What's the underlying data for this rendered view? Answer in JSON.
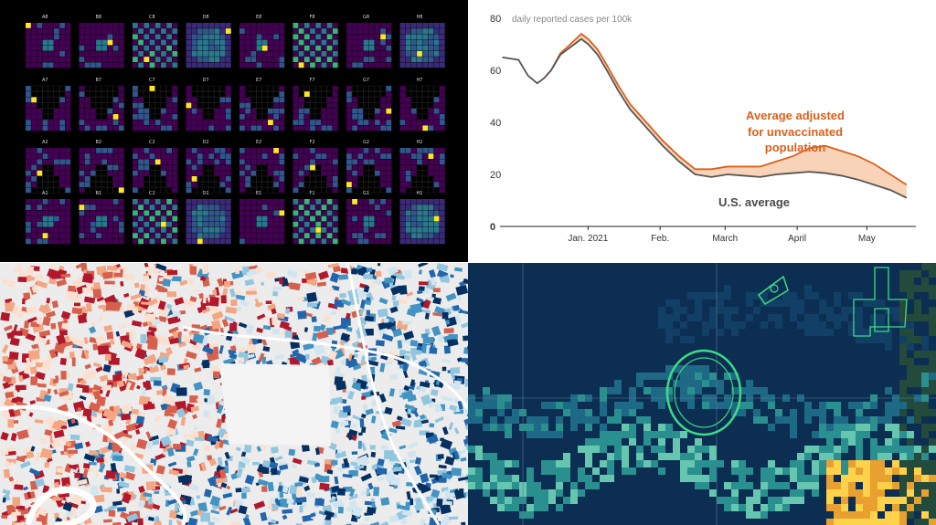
{
  "heatmap_grid": {
    "rows": [
      [
        "A8",
        "B8",
        "C8",
        "D8",
        "E8",
        "F8",
        "G8",
        "H8"
      ],
      [
        "A7",
        "B7",
        "C7",
        "D7",
        "E7",
        "F7",
        "G7",
        "H7"
      ],
      [
        "A2",
        "B2",
        "C2",
        "D2",
        "E2",
        "F2",
        "G2",
        "H2"
      ],
      [
        "A1",
        "B1",
        "C1",
        "D1",
        "E1",
        "F1",
        "G1",
        "H1"
      ]
    ],
    "colors": {
      "background": "#000000",
      "low": "#440154",
      "mid": "#2a788e",
      "high": "#35b779",
      "peak": "#fde725"
    }
  },
  "chart_data": {
    "type": "line",
    "ylabel": "daily reported cases per 100k",
    "ylim": [
      0,
      80
    ],
    "yticks": [
      0,
      20,
      40,
      60,
      80
    ],
    "x_tick_labels": [
      "Jan. 2021",
      "Feb.",
      "March",
      "April",
      "May"
    ],
    "series": [
      {
        "name": "U.S. average",
        "color": "#555555",
        "x": [
          "2020-12-01",
          "2020-12-08",
          "2020-12-12",
          "2020-12-16",
          "2020-12-19",
          "2020-12-22",
          "2020-12-26",
          "2020-12-29",
          "2021-01-01",
          "2021-01-04",
          "2021-01-07",
          "2021-01-11",
          "2021-01-15",
          "2021-01-20",
          "2021-01-25",
          "2021-02-01",
          "2021-02-08",
          "2021-02-15",
          "2021-02-22",
          "2021-03-01",
          "2021-03-08",
          "2021-03-15",
          "2021-03-22",
          "2021-03-29",
          "2021-04-05",
          "2021-04-12",
          "2021-04-19",
          "2021-04-26",
          "2021-05-03",
          "2021-05-10",
          "2021-05-17",
          "2021-05-24"
        ],
        "y": [
          65,
          64,
          58,
          55,
          57,
          60,
          66,
          68,
          70,
          72,
          70,
          66,
          60,
          52,
          45,
          38,
          31,
          25,
          20,
          19,
          20,
          19.5,
          19,
          20,
          20.5,
          21,
          20.5,
          19.5,
          18,
          16,
          14,
          11
        ]
      },
      {
        "name": "Average adjusted for unvaccinated population",
        "color": "#d9601c",
        "x": [
          "2020-12-19",
          "2020-12-22",
          "2020-12-26",
          "2020-12-29",
          "2021-01-01",
          "2021-01-04",
          "2021-01-07",
          "2021-01-11",
          "2021-01-15",
          "2021-01-20",
          "2021-01-25",
          "2021-02-01",
          "2021-02-08",
          "2021-02-15",
          "2021-02-22",
          "2021-03-01",
          "2021-03-08",
          "2021-03-15",
          "2021-03-22",
          "2021-03-29",
          "2021-04-05",
          "2021-04-12",
          "2021-04-19",
          "2021-04-26",
          "2021-05-03",
          "2021-05-10",
          "2021-05-17",
          "2021-05-24"
        ],
        "y": [
          57,
          60,
          66.5,
          69,
          71.5,
          74,
          72,
          68,
          62,
          54,
          47,
          40,
          33,
          27,
          22,
          22,
          23,
          23,
          23,
          25,
          27,
          30,
          31,
          29,
          27,
          24,
          20,
          16
        ]
      }
    ],
    "annotations": [
      {
        "text": "Average adjusted",
        "color": "#d9601c"
      },
      {
        "text": "for unvaccinated",
        "color": "#d9601c"
      },
      {
        "text": "population",
        "color": "#d9601c"
      },
      {
        "text": "U.S. average",
        "color": "#4a4a4a"
      }
    ],
    "band_color": "#f9d3b8",
    "grid": false,
    "legend": "none"
  },
  "map_colors": {
    "background": "#ececec",
    "red_dark": "#b2182b",
    "red": "#d6604d",
    "red_light": "#f4a582",
    "blue_light": "#92c5de",
    "blue": "#4393c3",
    "blue_dark": "#053061"
  },
  "sat_colors": {
    "ocean": "#0c2e52",
    "teal": "#2a8f8f",
    "mint": "#67c6b0",
    "orange": "#e8a030",
    "yellow": "#ffd24a",
    "outline": "#3ddc84"
  }
}
